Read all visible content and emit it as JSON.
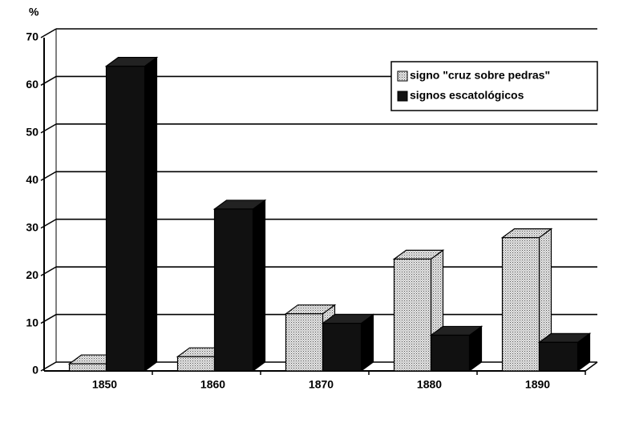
{
  "chart_data": {
    "type": "bar3d",
    "ylabel": "%",
    "categories": [
      "1850",
      "1860",
      "1870",
      "1880",
      "1890"
    ],
    "series": [
      {
        "name": "signo \"cruz sobre pedras\"",
        "color": "#c8c8c8",
        "values": [
          1.5,
          3,
          12,
          23.5,
          28
        ]
      },
      {
        "name": "signos escatológicos",
        "color": "#111111",
        "values": [
          64,
          34,
          10,
          7.5,
          6
        ]
      }
    ],
    "ylim": [
      0,
      70
    ],
    "yticks": [
      0,
      10,
      20,
      30,
      40,
      50,
      60,
      70
    ],
    "grid": true,
    "legend": "top-right"
  }
}
